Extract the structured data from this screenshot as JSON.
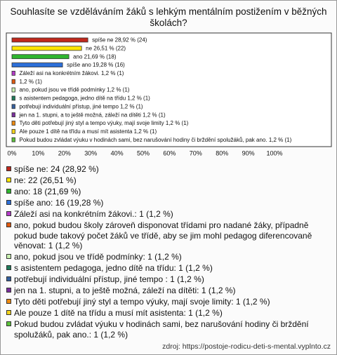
{
  "chart_data": {
    "type": "bar",
    "title": "Souhlasíte se vzděláváním žáků s lehkým mentálním postižením v běžných školách?",
    "values": [
      28.92,
      26.51,
      21.69,
      19.28,
      1.2,
      1.2,
      1.2,
      1.2,
      1.2,
      1.2,
      1.2,
      1.2,
      1.2
    ],
    "value_labels": [
      "spíše ne 28,92 % (24)",
      "ne 26,51 % (22)",
      "ano 21,69 % (18)",
      "spíše ano 19,28 % (16)",
      "Záleží asi na konkrétním žákovi. 1,2 % (1)",
      "1,2 % (1)",
      "ano, pokud jsou ve třídě podmínky 1,2 % (1)",
      "s asistentem pedagoga, jedno dítě na třídu 1,2 % (1)",
      "potřebují individuální přístup, jiné tempo  1,2 % (1)",
      "jen na 1. stupni, a to ještě možná, záleží na dítěti 1,2 % (1)",
      "Tyto děti potřebují jiný styl a tempo výuky, mají svoje limity 1,2 % (1)",
      "Ale pouze 1 dítě na třídu a musí mít asistenta 1,2 % (1)",
      "Pokud budou zvládat výuku v hodinách sami, bez narušování hodiny či brždění spolužáků, pak ano. 1,2 % (1)"
    ],
    "colors": [
      "#c0281c",
      "#ffe600",
      "#2fb52f",
      "#2d6fd8",
      "#b43cc8",
      "#e05a10",
      "#c8f0b0",
      "#1f7a5a",
      "#34609e",
      "#7a2e9c",
      "#ee8a10",
      "#f2d21a",
      "#5cc23c"
    ],
    "legend": [
      "spíše ne: 24 (28,92 %)",
      "ne: 22 (26,51 %)",
      "ano: 18 (21,69 %)",
      "spíše ano: 16 (19,28 %)",
      "Záleží asi na konkrétním žákovi.: 1 (1,2 %)",
      "ano, pokud budou školy zároveň disponovat třídami pro nadané žáky, případně pokud bude takový počet žáků ve třídě, aby se jim mohl pedagog diferencovaně věnovat: 1 (1,2 %)",
      "ano, pokud jsou ve třídě podmínky: 1 (1,2 %)",
      "s asistentem pedagoga, jedno dítě na třídu: 1 (1,2 %)",
      "potřebují individuální přístup, jiné tempo : 1 (1,2 %)",
      "jen na 1. stupni, a to ještě možná, záleží na dítěti: 1 (1,2 %)",
      "Tyto děti potřebují jiný styl a tempo výuky, mají svoje limity: 1 (1,2 %)",
      "Ale pouze 1 dítě na třídu a musí mít asistenta: 1 (1,2 %)",
      "Pokud budou zvládat výuku v hodinách sami, bez narušování hodiny či brždění spolužáků, pak ano.: 1 (1,2 %)"
    ],
    "xlim": [
      0,
      100
    ],
    "xticks": [
      {
        "value": 0,
        "label": "0%"
      },
      {
        "value": 10,
        "label": "10%"
      },
      {
        "value": 20,
        "label": "20%"
      },
      {
        "value": 30,
        "label": "30%"
      },
      {
        "value": 40,
        "label": "40%"
      },
      {
        "value": 50,
        "label": "50%"
      },
      {
        "value": 60,
        "label": "60%"
      },
      {
        "value": 70,
        "label": "70%"
      },
      {
        "value": 80,
        "label": "80%"
      },
      {
        "value": 90,
        "label": "90%"
      },
      {
        "value": 100,
        "label": "100%"
      }
    ],
    "source": "zdroj: https://postoje-rodicu-deti-s-mental.vyplnto.cz"
  }
}
